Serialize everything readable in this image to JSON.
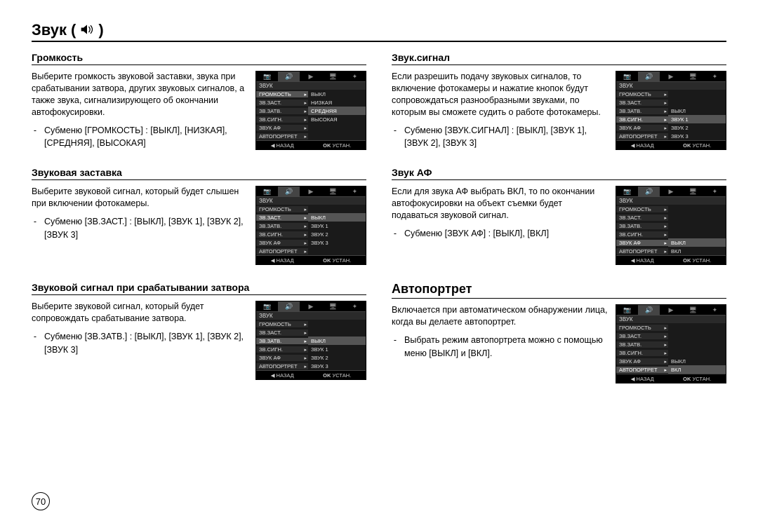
{
  "page": {
    "title": "Звук",
    "number": "70"
  },
  "left": {
    "volume": {
      "heading": "Громкость",
      "body": "Выберите громкость звуковой заставки, звука при срабатывании затвора, других звуковых сигналов, а также звука, сигнализирующего об окончании автофокусировки.",
      "sub": "Субменю [ГРОМКОСТЬ] : [ВЫКЛ], [НИЗКАЯ], [СРЕДНЯЯ], [ВЫСОКАЯ]",
      "lcd": {
        "title": "ЗВУК",
        "rows": [
          {
            "lab": "ГРОМКОСТЬ",
            "val": "ВЫКЛ",
            "hl": true,
            "vhl": false
          },
          {
            "lab": "ЗВ.ЗАСТ.",
            "val": "НИЗКАЯ",
            "hl": false,
            "vhl": false
          },
          {
            "lab": "ЗВ.ЗАТВ.",
            "val": "СРЕДНЯЯ",
            "hl": false,
            "vhl": true
          },
          {
            "lab": "ЗВ.СИГН.",
            "val": "ВЫСОКАЯ",
            "hl": false,
            "vhl": false
          },
          {
            "lab": "ЗВУК АФ",
            "val": "",
            "hl": false,
            "vhl": false
          },
          {
            "lab": "АВТОПОРТРЕТ",
            "val": "",
            "hl": false,
            "vhl": false
          }
        ]
      }
    },
    "startup": {
      "heading": "Звуковая заставка",
      "body": "Выберите звуковой сигнал, который будет слышен при включении фотокамеры.",
      "sub": "Субменю [ЗВ.ЗАСТ.] : [ВЫКЛ], [ЗВУК 1], [ЗВУК 2], [ЗВУК 3]",
      "lcd": {
        "title": "ЗВУК",
        "rows": [
          {
            "lab": "ГРОМКОСТЬ",
            "val": "",
            "hl": false,
            "vhl": false
          },
          {
            "lab": "ЗВ.ЗАСТ.",
            "val": "ВЫКЛ",
            "hl": true,
            "vhl": true
          },
          {
            "lab": "ЗВ.ЗАТВ.",
            "val": "ЗВУК 1",
            "hl": false,
            "vhl": false
          },
          {
            "lab": "ЗВ.СИГН.",
            "val": "ЗВУК 2",
            "hl": false,
            "vhl": false
          },
          {
            "lab": "ЗВУК АФ",
            "val": "ЗВУК 3",
            "hl": false,
            "vhl": false
          },
          {
            "lab": "АВТОПОРТРЕТ",
            "val": "",
            "hl": false,
            "vhl": false
          }
        ]
      }
    },
    "shutter": {
      "heading": "Звуковой сигнал при срабатывании затвора",
      "body": "Выберите звуковой сигнал, который будет сопровождать срабатывание затвора.",
      "sub": "Субменю [ЗВ.ЗАТВ.] : [ВЫКЛ], [ЗВУК 1], [ЗВУК 2], [ЗВУК 3]",
      "lcd": {
        "title": "ЗВУК",
        "rows": [
          {
            "lab": "ГРОМКОСТЬ",
            "val": "",
            "hl": false,
            "vhl": false
          },
          {
            "lab": "ЗВ.ЗАСТ.",
            "val": "",
            "hl": false,
            "vhl": false
          },
          {
            "lab": "ЗВ.ЗАТВ.",
            "val": "ВЫКЛ",
            "hl": true,
            "vhl": true
          },
          {
            "lab": "ЗВ.СИГН.",
            "val": "ЗВУК 1",
            "hl": false,
            "vhl": false
          },
          {
            "lab": "ЗВУК АФ",
            "val": "ЗВУК 2",
            "hl": false,
            "vhl": false
          },
          {
            "lab": "АВТОПОРТРЕТ",
            "val": "ЗВУК 3",
            "hl": false,
            "vhl": false
          }
        ]
      }
    }
  },
  "right": {
    "beep": {
      "heading": "Звук.сигнал",
      "body": "Если разрешить подачу звуковых сигналов, то включение фотокамеры и нажатие кнопок будут сопровождаться разнообразными звуками, по которым вы сможете судить о работе фотокамеры.",
      "sub": "Субменю [ЗВУК.СИГНАЛ] : [ВЫКЛ], [ЗВУК 1], [ЗВУК 2], [ЗВУК 3]",
      "lcd": {
        "title": "ЗВУК",
        "rows": [
          {
            "lab": "ГРОМКОСТЬ",
            "val": "",
            "hl": false,
            "vhl": false
          },
          {
            "lab": "ЗВ.ЗАСТ.",
            "val": "",
            "hl": false,
            "vhl": false
          },
          {
            "lab": "ЗВ.ЗАТВ.",
            "val": "ВЫКЛ",
            "hl": false,
            "vhl": false
          },
          {
            "lab": "ЗВ.СИГН.",
            "val": "ЗВУК 1",
            "hl": true,
            "vhl": true
          },
          {
            "lab": "ЗВУК АФ",
            "val": "ЗВУК 2",
            "hl": false,
            "vhl": false
          },
          {
            "lab": "АВТОПОРТРЕТ",
            "val": "ЗВУК 3",
            "hl": false,
            "vhl": false
          }
        ]
      }
    },
    "af": {
      "heading": "Звук  АФ",
      "body": "Если для звука АФ выбрать ВКЛ, то по окончании автофокусировки на объект съемки будет подаваться звуковой сигнал.",
      "sub": "Субменю [ЗВУК АФ] : [ВЫКЛ], [ВКЛ]",
      "lcd": {
        "title": "ЗВУК",
        "rows": [
          {
            "lab": "ГРОМКОСТЬ",
            "val": "",
            "hl": false,
            "vhl": false
          },
          {
            "lab": "ЗВ.ЗАСТ.",
            "val": "",
            "hl": false,
            "vhl": false
          },
          {
            "lab": "ЗВ.ЗАТВ.",
            "val": "",
            "hl": false,
            "vhl": false
          },
          {
            "lab": "ЗВ.СИГН.",
            "val": "",
            "hl": false,
            "vhl": false
          },
          {
            "lab": "ЗВУК АФ",
            "val": "ВЫКЛ",
            "hl": true,
            "vhl": true
          },
          {
            "lab": "АВТОПОРТРЕТ",
            "val": "ВКЛ",
            "hl": false,
            "vhl": false
          }
        ]
      }
    },
    "selfportrait": {
      "heading": "Автопортрет",
      "body": "Включается при автоматическом обнаружении лица, когда вы делаете автопортрет.",
      "sub": "Выбрать режим автопортрета можно с помощью меню [ВЫКЛ] и [ВКЛ].",
      "lcd": {
        "title": "ЗВУК",
        "rows": [
          {
            "lab": "ГРОМКОСТЬ",
            "val": "",
            "hl": false,
            "vhl": false
          },
          {
            "lab": "ЗВ.ЗАСТ.",
            "val": "",
            "hl": false,
            "vhl": false
          },
          {
            "lab": "ЗВ.ЗАТВ.",
            "val": "",
            "hl": false,
            "vhl": false
          },
          {
            "lab": "ЗВ.СИГН.",
            "val": "",
            "hl": false,
            "vhl": false
          },
          {
            "lab": "ЗВУК АФ",
            "val": "ВЫКЛ",
            "hl": false,
            "vhl": false
          },
          {
            "lab": "АВТОПОРТРЕТ",
            "val": "ВКЛ",
            "hl": true,
            "vhl": true
          }
        ]
      }
    }
  },
  "lcd_common": {
    "back": "НАЗАД",
    "ok": "OK",
    "set": "УСТАН."
  }
}
